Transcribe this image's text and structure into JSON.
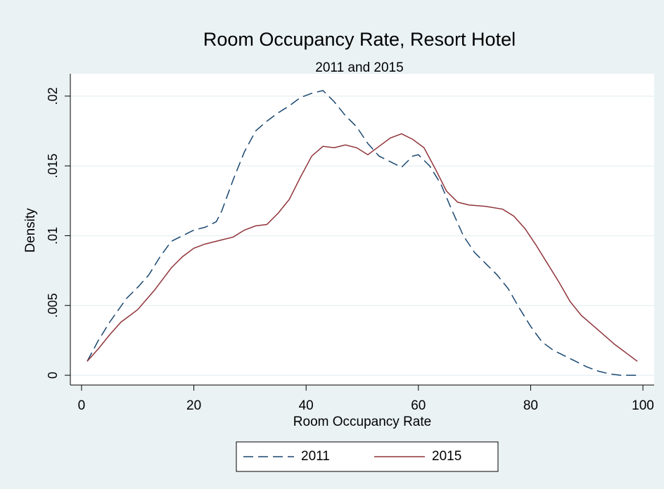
{
  "chart_data": {
    "type": "line",
    "title": "Room Occupancy Rate, Resort Hotel",
    "subtitle": "2011 and 2015",
    "x_label": "Room Occupancy Rate",
    "y_label": "Density",
    "xlim": [
      -2,
      102
    ],
    "ylim": [
      -0.0007,
      0.0216
    ],
    "xticks": [
      0,
      20,
      40,
      60,
      80,
      100
    ],
    "yticks": [
      0,
      {
        "value": 0.005,
        "label": ".005"
      },
      {
        "value": 0.01,
        "label": ".01"
      },
      {
        "value": 0.015,
        "label": ".015"
      },
      {
        "value": 0.02,
        "label": ".02"
      }
    ],
    "grid": true,
    "legend": "bottom",
    "series": [
      {
        "name": "2011",
        "color": "#1a476f",
        "dash": true,
        "x": [
          1,
          3,
          5,
          8,
          10,
          12,
          14,
          16,
          18,
          20,
          22,
          24,
          25,
          27,
          29,
          31,
          33,
          35,
          37,
          39,
          41,
          43,
          45,
          47,
          49,
          51,
          53,
          55,
          57,
          59,
          60,
          62,
          64,
          66,
          68,
          70,
          72,
          74,
          76,
          78,
          80,
          82,
          84,
          86,
          88,
          90,
          92,
          94,
          96,
          99
        ],
        "values": [
          0.001,
          0.0025,
          0.0038,
          0.0055,
          0.0063,
          0.0072,
          0.0085,
          0.0096,
          0.01,
          0.0104,
          0.0106,
          0.011,
          0.0118,
          0.014,
          0.016,
          0.0175,
          0.0182,
          0.0188,
          0.0193,
          0.0199,
          0.0202,
          0.0204,
          0.0196,
          0.0186,
          0.0178,
          0.0166,
          0.0157,
          0.0153,
          0.0149,
          0.0157,
          0.0158,
          0.015,
          0.0137,
          0.0118,
          0.01,
          0.0088,
          0.008,
          0.0072,
          0.0062,
          0.0048,
          0.0035,
          0.0024,
          0.0018,
          0.0014,
          0.001,
          0.0006,
          0.0003,
          0.0001,
          0,
          0
        ]
      },
      {
        "name": "2015",
        "color": "#90353b",
        "dash": false,
        "x": [
          1,
          3,
          5,
          7,
          10,
          13,
          16,
          18,
          20,
          22,
          25,
          27,
          29,
          31,
          33,
          35,
          37,
          39,
          41,
          43,
          45,
          47,
          49,
          51,
          53,
          55,
          57,
          59,
          61,
          63,
          65,
          67,
          69,
          72,
          75,
          77,
          79,
          81,
          83,
          85,
          87,
          89,
          91,
          93,
          95,
          97,
          99
        ],
        "values": [
          0.001,
          0.0019,
          0.0029,
          0.0038,
          0.0047,
          0.0061,
          0.0077,
          0.0085,
          0.0091,
          0.0094,
          0.0097,
          0.0099,
          0.0104,
          0.0107,
          0.0108,
          0.0116,
          0.0126,
          0.0142,
          0.0157,
          0.0164,
          0.0163,
          0.0165,
          0.0163,
          0.0158,
          0.0164,
          0.017,
          0.0173,
          0.0169,
          0.0163,
          0.0148,
          0.0132,
          0.0124,
          0.0122,
          0.0121,
          0.0119,
          0.0114,
          0.0105,
          0.0093,
          0.008,
          0.0067,
          0.0053,
          0.0043,
          0.0036,
          0.0029,
          0.0022,
          0.0016,
          0.001
        ]
      }
    ]
  }
}
